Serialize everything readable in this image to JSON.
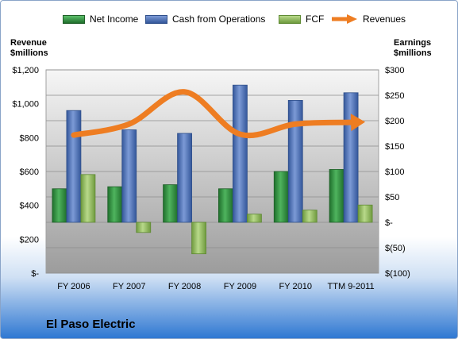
{
  "title": "El Paso Electric",
  "legend": [
    {
      "label": "Net Income",
      "color": "#2e8b3e"
    },
    {
      "label": "Cash from Operations",
      "color": "#4a6fb5"
    },
    {
      "label": "FCF",
      "color": "#8fb85a"
    },
    {
      "label": "Revenues",
      "color": "#ee7d22"
    }
  ],
  "chart_data": {
    "type": "bar",
    "categories": [
      "FY 2006",
      "FY 2007",
      "FY 2008",
      "FY 2009",
      "FY 2010",
      "TTM 9-2011"
    ],
    "left_axis": {
      "label_line1": "Revenue",
      "label_line2": "$millions",
      "range": [
        0,
        1200
      ],
      "ticks": [
        0,
        200,
        400,
        600,
        800,
        1000,
        1200
      ],
      "tick_labels": [
        "$-",
        "$200",
        "$400",
        "$600",
        "$800",
        "$1,000",
        "$1,200"
      ]
    },
    "right_axis": {
      "label_line1": "Earnings",
      "label_line2": "$millions",
      "range": [
        -100,
        300
      ],
      "ticks": [
        -100,
        -50,
        0,
        50,
        100,
        150,
        200,
        250,
        300
      ],
      "tick_labels": [
        "$(100)",
        "$(50)",
        "$-",
        "$50",
        "$100",
        "$150",
        "$200",
        "$250",
        "$300"
      ]
    },
    "series": [
      {
        "name": "Net Income",
        "axis": "right",
        "type": "bar",
        "color": "#2e8b3e",
        "values": [
          66,
          70,
          74,
          66,
          100,
          104
        ]
      },
      {
        "name": "Cash from Operations",
        "axis": "right",
        "type": "bar",
        "color": "#4a6fb5",
        "values": [
          220,
          182,
          175,
          270,
          240,
          255
        ]
      },
      {
        "name": "FCF",
        "axis": "right",
        "type": "bar",
        "color": "#8fb85a",
        "values": [
          94,
          -20,
          -62,
          16,
          24,
          34
        ]
      },
      {
        "name": "Revenues",
        "axis": "left",
        "type": "line",
        "color": "#ee7d22",
        "values": [
          815,
          880,
          1070,
          820,
          880,
          890
        ]
      }
    ],
    "grid": true
  }
}
